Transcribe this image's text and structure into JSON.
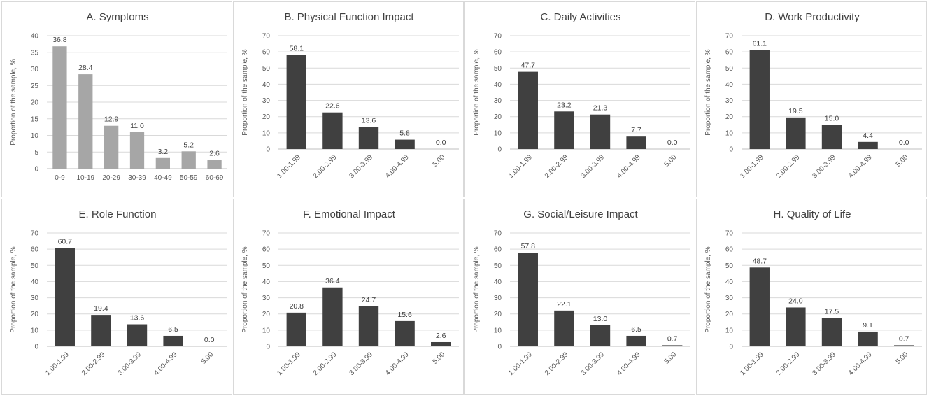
{
  "chart_data": [
    {
      "id": "A",
      "type": "bar",
      "title": "A. Symptoms",
      "ylabel": "Proportion of the sample, %",
      "xlabel": "",
      "categories": [
        "0-9",
        "10-19",
        "20-29",
        "30-39",
        "40-49",
        "50-59",
        "60-69"
      ],
      "values": [
        36.8,
        28.4,
        12.9,
        11.0,
        3.2,
        5.2,
        2.6
      ],
      "data_labels": [
        "36.8",
        "28.4",
        "12.9",
        "11.0",
        "3.2",
        "5.2",
        "2.6"
      ],
      "ylim": [
        0,
        40
      ],
      "yticks": [
        0,
        5,
        10,
        15,
        20,
        25,
        30,
        35,
        40
      ],
      "grid": true,
      "color": "#a6a6a6",
      "rotate_labels": false
    },
    {
      "id": "B",
      "type": "bar",
      "title": "B. Physical Function Impact",
      "ylabel": "Proportion of the sample, %",
      "xlabel": "",
      "categories": [
        "1.00-1.99",
        "2.00-2.99",
        "3.00-3.99",
        "4.00-4.99",
        "5.00"
      ],
      "values": [
        58.1,
        22.6,
        13.6,
        5.8,
        0.0
      ],
      "data_labels": [
        "58.1",
        "22.6",
        "13.6",
        "5.8",
        "0.0"
      ],
      "ylim": [
        0,
        70
      ],
      "yticks": [
        0,
        10,
        20,
        30,
        40,
        50,
        60,
        70
      ],
      "grid": true,
      "color": "#404040",
      "rotate_labels": true
    },
    {
      "id": "C",
      "type": "bar",
      "title": "C. Daily Activities",
      "ylabel": "Proportion of the sample, %",
      "xlabel": "",
      "categories": [
        "1.00-1.99",
        "2.00-2.99",
        "3.00-3.99",
        "4.00-4.99",
        "5.00"
      ],
      "values": [
        47.7,
        23.2,
        21.3,
        7.7,
        0.0
      ],
      "data_labels": [
        "47.7",
        "23.2",
        "21.3",
        "7.7",
        "0.0"
      ],
      "ylim": [
        0,
        70
      ],
      "yticks": [
        0,
        10,
        20,
        30,
        40,
        50,
        60,
        70
      ],
      "grid": true,
      "color": "#404040",
      "rotate_labels": true
    },
    {
      "id": "D",
      "type": "bar",
      "title": "D. Work Productivity",
      "ylabel": "Proportion of the sample, %",
      "xlabel": "",
      "categories": [
        "1.00-1.99",
        "2.00-2.99",
        "3.00-3.99",
        "4.00-4.99",
        "5.00"
      ],
      "values": [
        61.1,
        19.5,
        15.0,
        4.4,
        0.0
      ],
      "data_labels": [
        "61.1",
        "19.5",
        "15.0",
        "4.4",
        "0.0"
      ],
      "ylim": [
        0,
        70
      ],
      "yticks": [
        0,
        10,
        20,
        30,
        40,
        50,
        60,
        70
      ],
      "grid": true,
      "color": "#404040",
      "rotate_labels": true
    },
    {
      "id": "E",
      "type": "bar",
      "title": "E. Role Function",
      "ylabel": "Proportion of the sample, %",
      "xlabel": "",
      "categories": [
        "1.00-1.99",
        "2.00-2.99",
        "3.00-3.99",
        "4.00-4.99",
        "5.00"
      ],
      "values": [
        60.7,
        19.4,
        13.6,
        6.5,
        0.0
      ],
      "data_labels": [
        "60.7",
        "19.4",
        "13.6",
        "6.5",
        "0.0"
      ],
      "ylim": [
        0,
        70
      ],
      "yticks": [
        0,
        10,
        20,
        30,
        40,
        50,
        60,
        70
      ],
      "grid": true,
      "color": "#404040",
      "rotate_labels": true
    },
    {
      "id": "F",
      "type": "bar",
      "title": "F. Emotional Impact",
      "ylabel": "Proportion of the sample, %",
      "xlabel": "",
      "categories": [
        "1.00-1.99",
        "2.00-2.99",
        "3.00-3.99",
        "4.00-4.99",
        "5.00"
      ],
      "values": [
        20.8,
        36.4,
        24.7,
        15.6,
        2.6
      ],
      "data_labels": [
        "20.8",
        "36.4",
        "24.7",
        "15.6",
        "2.6"
      ],
      "ylim": [
        0,
        70
      ],
      "yticks": [
        0,
        10,
        20,
        30,
        40,
        50,
        60,
        70
      ],
      "grid": true,
      "color": "#404040",
      "rotate_labels": true
    },
    {
      "id": "G",
      "type": "bar",
      "title": "G. Social/Leisure Impact",
      "ylabel": "Proportion of the sample, %",
      "xlabel": "",
      "categories": [
        "1.00-1.99",
        "2.00-2.99",
        "3.00-3.99",
        "4.00-4.99",
        "5.00"
      ],
      "values": [
        57.8,
        22.1,
        13.0,
        6.5,
        0.7
      ],
      "data_labels": [
        "57.8",
        "22.1",
        "13.0",
        "6.5",
        "0.7"
      ],
      "ylim": [
        0,
        70
      ],
      "yticks": [
        0,
        10,
        20,
        30,
        40,
        50,
        60,
        70
      ],
      "grid": true,
      "color": "#404040",
      "rotate_labels": true
    },
    {
      "id": "H",
      "type": "bar",
      "title": "H. Quality of Life",
      "ylabel": "Proportion of the sample, %",
      "xlabel": "",
      "categories": [
        "1.00-1.99",
        "2.00-2.99",
        "3.00-3.99",
        "4.00-4.99",
        "5.00"
      ],
      "values": [
        48.7,
        24.0,
        17.5,
        9.1,
        0.7
      ],
      "data_labels": [
        "48.7",
        "24.0",
        "17.5",
        "9.1",
        "0.7"
      ],
      "ylim": [
        0,
        70
      ],
      "yticks": [
        0,
        10,
        20,
        30,
        40,
        50,
        60,
        70
      ],
      "grid": true,
      "color": "#404040",
      "rotate_labels": true
    }
  ]
}
